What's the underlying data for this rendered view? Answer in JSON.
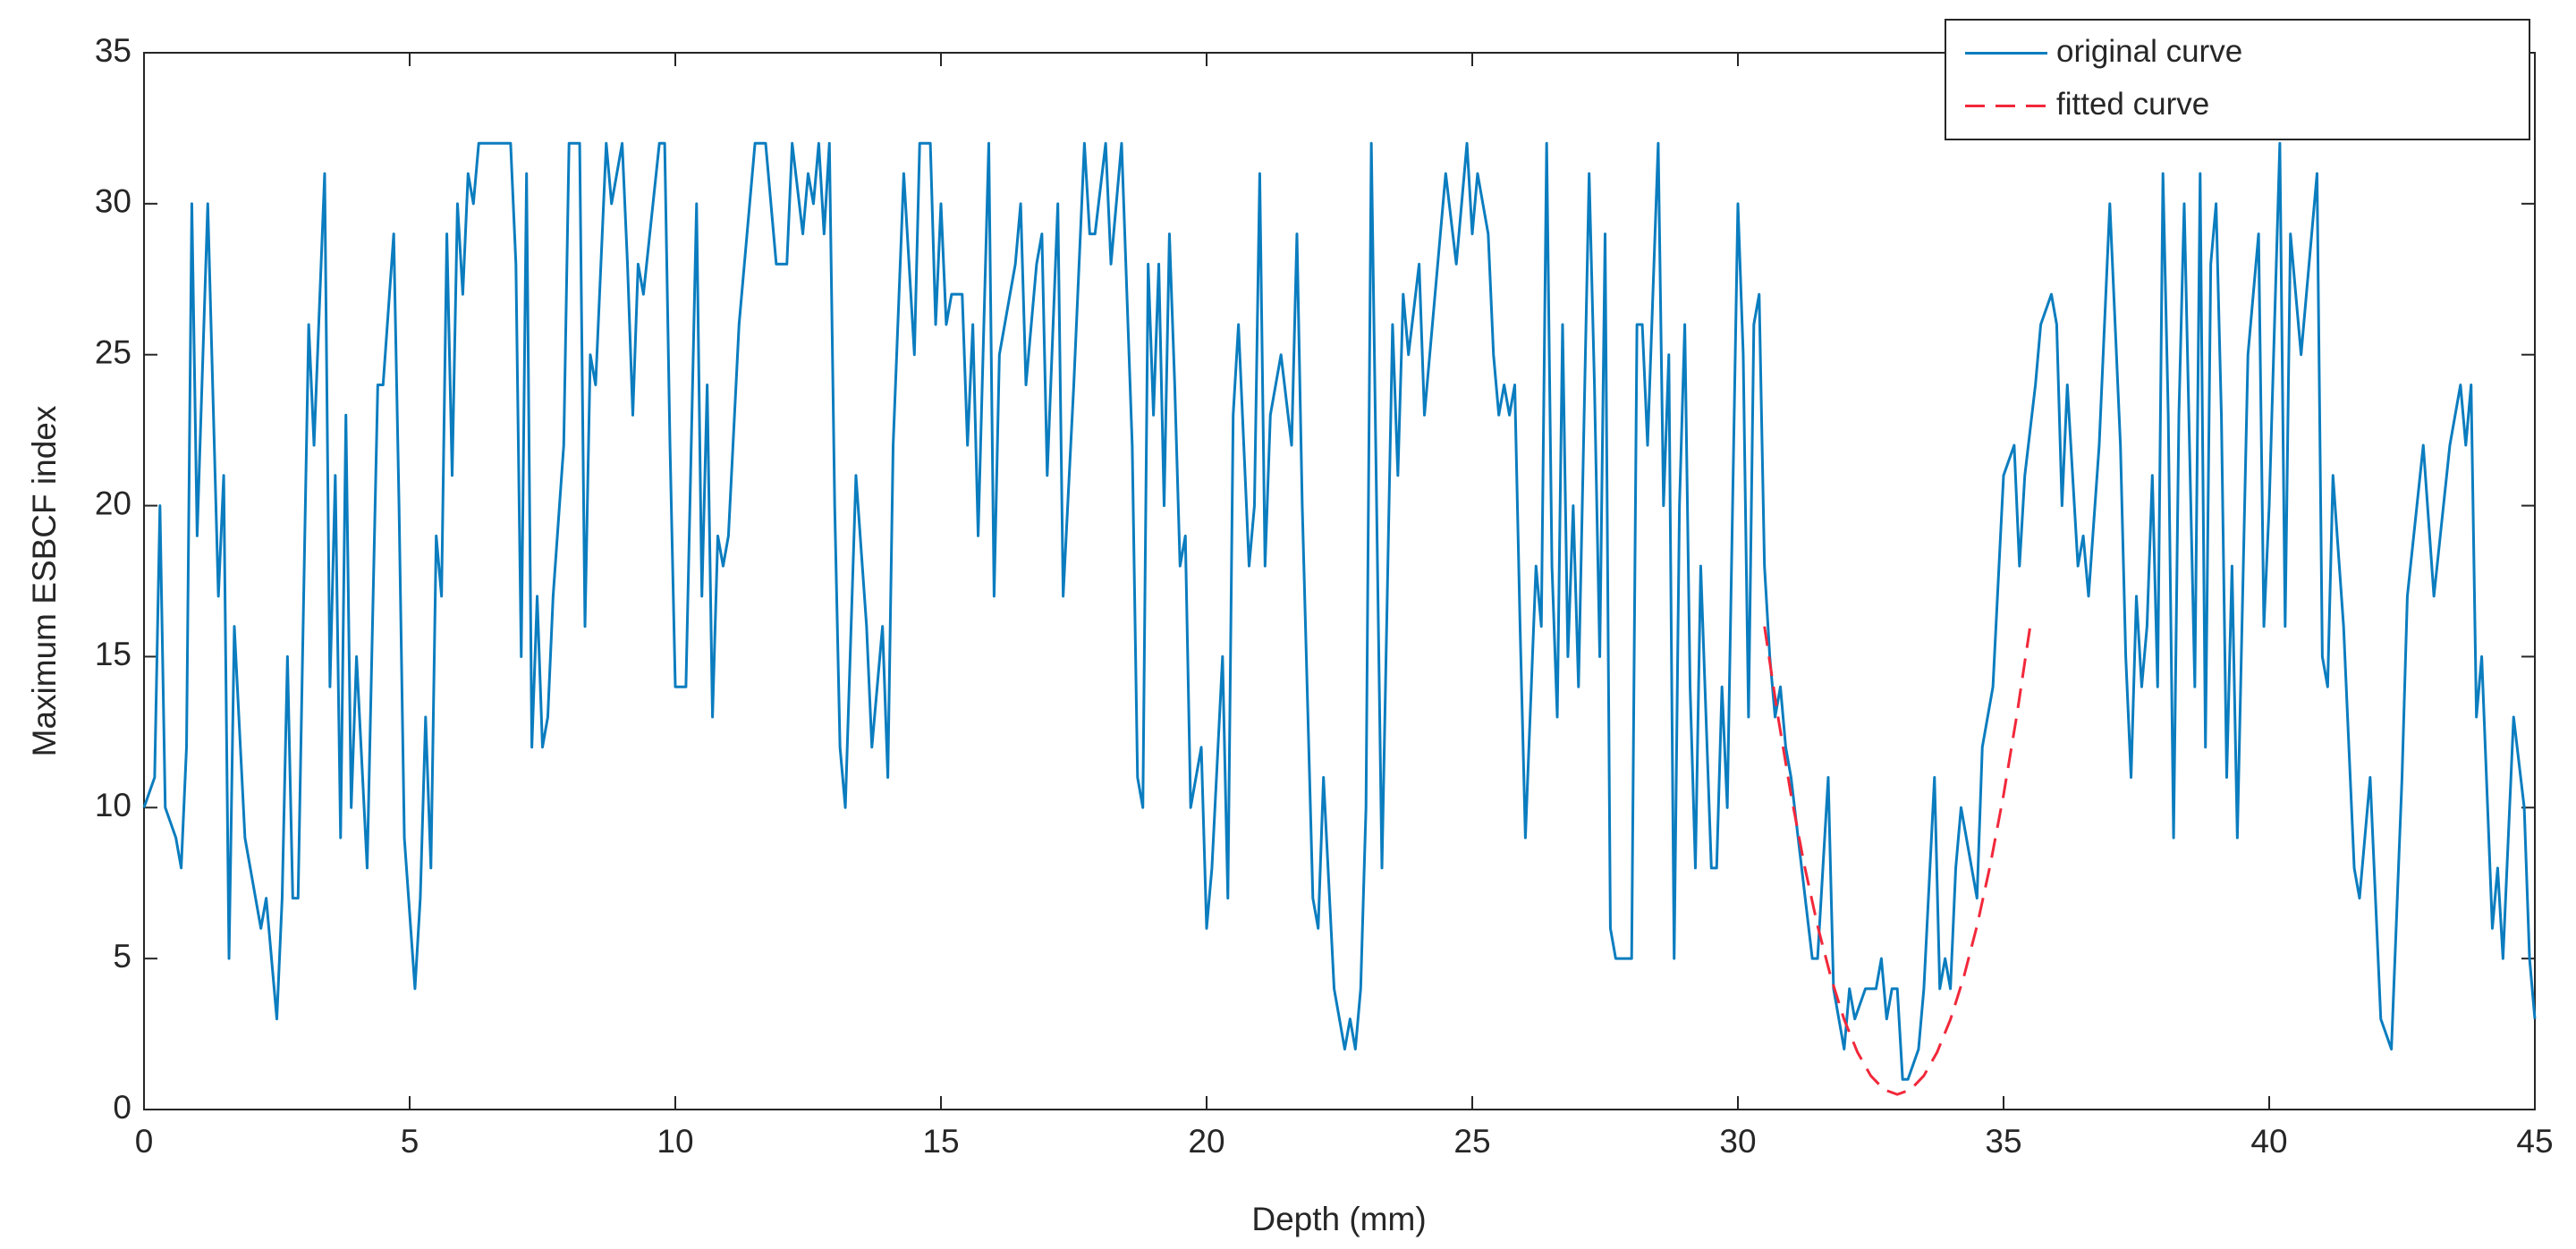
{
  "chart_data": {
    "type": "line",
    "xlabel": "Depth (mm)",
    "ylabel": "Maximum ESBCF index",
    "xlim": [
      0,
      45
    ],
    "xticks": [
      0,
      5,
      10,
      15,
      20,
      25,
      30,
      35,
      40,
      45
    ],
    "ylim": [
      0,
      35
    ],
    "yticks": [
      0,
      5,
      10,
      15,
      20,
      25,
      30,
      35
    ],
    "legend": "northeast",
    "series": [
      {
        "name": "original curve",
        "color": "#0b7dbf",
        "line_style": "solid",
        "x": [
          0,
          0.2,
          0.3,
          0.4,
          0.6,
          0.7,
          0.8,
          0.9,
          1.0,
          1.2,
          1.4,
          1.5,
          1.6,
          1.7,
          1.9,
          2.2,
          2.3,
          2.5,
          2.6,
          2.7,
          2.8,
          2.9,
          3.1,
          3.2,
          3.4,
          3.5,
          3.6,
          3.7,
          3.8,
          3.9,
          4.0,
          4.2,
          4.4,
          4.5,
          4.7,
          4.8,
          4.9,
          5.1,
          5.2,
          5.3,
          5.4,
          5.5,
          5.6,
          5.7,
          5.8,
          5.9,
          6.0,
          6.1,
          6.2,
          6.3,
          6.5,
          6.9,
          7.0,
          7.1,
          7.2,
          7.3,
          7.4,
          7.5,
          7.6,
          7.7,
          7.9,
          8.0,
          8.2,
          8.3,
          8.4,
          8.5,
          8.7,
          8.8,
          9.0,
          9.1,
          9.2,
          9.3,
          9.4,
          9.7,
          9.8,
          9.9,
          10.0,
          10.2,
          10.4,
          10.5,
          10.6,
          10.7,
          10.8,
          10.9,
          11.0,
          11.2,
          11.5,
          11.7,
          11.9,
          12.1,
          12.2,
          12.4,
          12.5,
          12.6,
          12.7,
          12.8,
          12.9,
          13.0,
          13.1,
          13.2,
          13.4,
          13.6,
          13.7,
          13.9,
          14.0,
          14.1,
          14.3,
          14.5,
          14.6,
          14.8,
          14.9,
          15.0,
          15.1,
          15.2,
          15.4,
          15.5,
          15.6,
          15.7,
          15.9,
          16.0,
          16.1,
          16.4,
          16.5,
          16.6,
          16.8,
          16.9,
          17.0,
          17.2,
          17.3,
          17.5,
          17.7,
          17.8,
          17.9,
          18.1,
          18.2,
          18.4,
          18.6,
          18.7,
          18.8,
          18.9,
          19.0,
          19.1,
          19.2,
          19.3,
          19.4,
          19.5,
          19.6,
          19.7,
          19.9,
          20.0,
          20.1,
          20.3,
          20.4,
          20.5,
          20.6,
          20.8,
          20.9,
          21.0,
          21.1,
          21.2,
          21.4,
          21.6,
          21.7,
          21.8,
          22.0,
          22.1,
          22.2,
          22.4,
          22.6,
          22.7,
          22.8,
          22.9,
          23.0,
          23.1,
          23.2,
          23.3,
          23.5,
          23.6,
          23.7,
          23.8,
          24.0,
          24.1,
          24.3,
          24.5,
          24.7,
          24.9,
          25.0,
          25.1,
          25.2,
          25.3,
          25.4,
          25.5,
          25.6,
          25.7,
          25.8,
          25.9,
          26.0,
          26.2,
          26.3,
          26.4,
          26.5,
          26.6,
          26.7,
          26.8,
          26.9,
          27.0,
          27.2,
          27.3,
          27.4,
          27.5,
          27.6,
          27.7,
          28.0,
          28.1,
          28.2,
          28.3,
          28.5,
          28.6,
          28.7,
          28.8,
          28.9,
          29.0,
          29.1,
          29.2,
          29.3,
          29.5,
          29.6,
          29.7,
          29.8,
          30.0,
          30.1,
          30.2,
          30.3,
          30.4,
          30.5,
          30.6,
          30.7,
          30.8,
          30.9,
          31.0,
          31.2,
          31.4,
          31.5,
          31.6,
          31.7,
          31.8,
          32.0,
          32.1,
          32.2,
          32.4,
          32.6,
          32.7,
          32.8,
          32.9,
          33.0,
          33.1,
          33.2,
          33.4,
          33.5,
          33.7,
          33.8,
          33.9,
          34.0,
          34.1,
          34.2,
          34.4,
          34.5,
          34.6,
          34.8,
          35.0,
          35.2,
          35.3,
          35.4,
          35.6,
          35.7,
          35.9,
          36.0,
          36.1,
          36.2,
          36.4,
          36.5,
          36.6,
          36.8,
          37.0,
          37.2,
          37.3,
          37.4,
          37.5,
          37.6,
          37.7,
          37.8,
          37.9,
          38.0,
          38.1,
          38.2,
          38.3,
          38.4,
          38.6,
          38.7,
          38.8,
          38.9,
          39.0,
          39.1,
          39.2,
          39.3,
          39.4,
          39.6,
          39.8,
          39.9,
          40.0,
          40.2,
          40.3,
          40.4,
          40.6,
          40.9,
          41.0,
          41.1,
          41.2,
          41.4,
          41.6,
          41.7,
          41.9,
          42.1,
          42.3,
          42.5,
          42.6,
          42.9,
          43.1,
          43.4,
          43.6,
          43.7,
          43.8,
          43.9,
          44.0,
          44.2,
          44.3,
          44.4,
          44.6,
          44.8,
          44.9,
          45.0
        ],
        "values": [
          10,
          11,
          20,
          10,
          9,
          8,
          12,
          30,
          19,
          30,
          17,
          21,
          5,
          16,
          9,
          6,
          7,
          3,
          7,
          15,
          7,
          7,
          26,
          22,
          31,
          14,
          21,
          9,
          23,
          10,
          15,
          8,
          24,
          24,
          29,
          20,
          9,
          4,
          7,
          13,
          8,
          19,
          17,
          29,
          21,
          30,
          27,
          31,
          30,
          32,
          32,
          32,
          28,
          15,
          31,
          12,
          17,
          12,
          13,
          17,
          22,
          32,
          32,
          16,
          25,
          24,
          32,
          30,
          32,
          28,
          23,
          28,
          27,
          32,
          32,
          22,
          14,
          14,
          30,
          17,
          24,
          13,
          19,
          18,
          19,
          26,
          32,
          32,
          28,
          28,
          32,
          29,
          31,
          30,
          32,
          29,
          32,
          20,
          12,
          10,
          21,
          16,
          12,
          16,
          11,
          22,
          31,
          25,
          32,
          32,
          26,
          30,
          26,
          27,
          27,
          22,
          26,
          19,
          32,
          17,
          25,
          28,
          30,
          24,
          28,
          29,
          21,
          30,
          17,
          24,
          32,
          29,
          29,
          32,
          28,
          32,
          22,
          11,
          10,
          28,
          23,
          28,
          20,
          29,
          24,
          18,
          19,
          10,
          12,
          6,
          8,
          15,
          7,
          23,
          26,
          18,
          20,
          31,
          18,
          23,
          25,
          22,
          29,
          20,
          7,
          6,
          11,
          4,
          2,
          3,
          2,
          4,
          10,
          32,
          20,
          8,
          26,
          21,
          27,
          25,
          28,
          23,
          27,
          31,
          28,
          32,
          29,
          31,
          30,
          29,
          25,
          23,
          24,
          23,
          24,
          16,
          9,
          18,
          16,
          32,
          18,
          13,
          26,
          15,
          20,
          14,
          31,
          24,
          15,
          29,
          6,
          5,
          5,
          26,
          26,
          22,
          32,
          20,
          25,
          5,
          20,
          26,
          14,
          8,
          18,
          8,
          8,
          14,
          10,
          30,
          25,
          13,
          26,
          27,
          18,
          15,
          13,
          14,
          12,
          11,
          8,
          5,
          5,
          8,
          11,
          4,
          2,
          4,
          3,
          4,
          4,
          5,
          3,
          4,
          4,
          1,
          1,
          2,
          4,
          11,
          4,
          5,
          4,
          8,
          10,
          8,
          7,
          12,
          14,
          21,
          22,
          18,
          21,
          24,
          26,
          27,
          26,
          20,
          24,
          18,
          19,
          17,
          22,
          30,
          22,
          15,
          11,
          17,
          14,
          16,
          21,
          14,
          31,
          23,
          9,
          23,
          30,
          14,
          31,
          12,
          28,
          30,
          23,
          11,
          18,
          9,
          25,
          29,
          16,
          20,
          32,
          16,
          29,
          25,
          31,
          15,
          14,
          21,
          16,
          8,
          7,
          11,
          3,
          2,
          11,
          17,
          22,
          17,
          22,
          24,
          22,
          24,
          13,
          15,
          6,
          8,
          5,
          13,
          10,
          5,
          3
        ]
      },
      {
        "name": "fitted curve",
        "color": "#f2283a",
        "line_style": "dashed",
        "x": [
          30.5,
          30.75,
          31,
          31.25,
          31.5,
          31.75,
          32,
          32.25,
          32.5,
          32.75,
          33,
          33.25,
          33.5,
          33.75,
          34,
          34.25,
          34.5,
          34.75,
          35,
          35.25,
          35.5
        ],
        "values": [
          16,
          13.06,
          10.42,
          8.1,
          6.08,
          4.38,
          2.98,
          1.9,
          1.12,
          0.66,
          0.5,
          0.66,
          1.12,
          1.9,
          2.98,
          4.38,
          6.08,
          8.1,
          10.42,
          13.06,
          16
        ]
      }
    ]
  }
}
